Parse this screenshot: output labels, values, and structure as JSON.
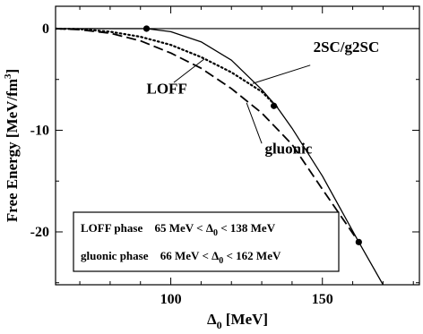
{
  "chart_data": {
    "type": "line",
    "xlabel": "Δ",
    "xlabel_sub": "0",
    "xlabel_unit": " [MeV]",
    "ylabel": "Free Energy [MeV/fm",
    "ylabel_sup": "3",
    "ylabel_tail": "]",
    "xlim": [
      62,
      182
    ],
    "ylim": [
      -25.2,
      2.2
    ],
    "x_ticks": [
      100,
      150
    ],
    "y_ticks": [
      0,
      -10,
      -20
    ],
    "x_tick_labels": [
      "100",
      "150"
    ],
    "y_tick_labels": [
      "0",
      "-10",
      "-20"
    ],
    "series": [
      {
        "name": "2SC/g2SC",
        "style": "solid",
        "x": [
          62,
          70,
          80,
          92,
          100,
          110,
          120,
          130,
          135,
          140,
          150,
          162,
          170
        ],
        "y": [
          0,
          0,
          0,
          0,
          -0.3,
          -1.3,
          -3.1,
          -6.0,
          -7.7,
          -9.8,
          -14.5,
          -21.0,
          -25.2
        ]
      },
      {
        "name": "LOFF",
        "style": "dotted",
        "x": [
          62,
          70,
          80,
          90,
          100,
          110,
          120,
          130,
          135
        ],
        "y": [
          0,
          -0.05,
          -0.3,
          -0.8,
          -1.6,
          -2.8,
          -4.3,
          -6.2,
          -7.7
        ]
      },
      {
        "name": "gluonic",
        "style": "dashed",
        "x": [
          62,
          70,
          80,
          90,
          100,
          110,
          120,
          130,
          140,
          150,
          162
        ],
        "y": [
          0,
          -0.1,
          -0.45,
          -1.2,
          -2.4,
          -3.9,
          -5.9,
          -8.3,
          -11.4,
          -15.8,
          -21.0
        ]
      },
      {
        "name": "",
        "style": "solid-reference",
        "x": [
          62,
          182
        ],
        "y": [
          0,
          0
        ]
      }
    ],
    "markers": [
      {
        "x": 92,
        "y": 0
      },
      {
        "x": 134,
        "y": -7.6
      },
      {
        "x": 162,
        "y": -21.0
      }
    ],
    "annotations": [
      {
        "text": "2SC/g2SC",
        "x": 147,
        "y": -2.3
      },
      {
        "text": "LOFF",
        "x": 92,
        "y": -6.4
      },
      {
        "text": "gluonic",
        "x": 131,
        "y": -12.3
      }
    ],
    "legend_box": {
      "rows": [
        {
          "label": "LOFF phase",
          "range_lo": "65 MeV < ",
          "delta": "Δ",
          "sub": "0",
          "range_hi": " < 138 MeV"
        },
        {
          "label": "gluonic phase",
          "range_lo": "66 MeV < ",
          "delta": "Δ",
          "sub": "0",
          "range_hi": " < 162 MeV"
        }
      ]
    }
  }
}
